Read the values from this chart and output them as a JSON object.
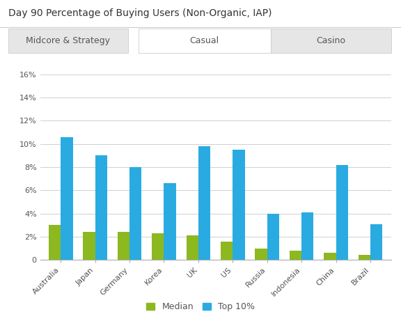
{
  "title": "Day 90 Percentage of Buying Users (Non-Organic, IAP)",
  "tabs": [
    "Midcore & Strategy",
    "Casual",
    "Casino"
  ],
  "active_tab": "Casual",
  "categories": [
    "Australia",
    "Japan",
    "Germany",
    "Korea",
    "UK",
    "US",
    "Russia",
    "Indonesia",
    "China",
    "Brazil"
  ],
  "median": [
    3.0,
    2.4,
    2.4,
    2.3,
    2.1,
    1.6,
    1.0,
    0.8,
    0.6,
    0.45
  ],
  "top10": [
    10.6,
    9.0,
    8.0,
    6.6,
    9.8,
    9.5,
    4.0,
    4.1,
    8.2,
    3.1
  ],
  "median_color": "#8cb820",
  "top10_color": "#29abe2",
  "ylim": [
    0,
    17
  ],
  "yticks": [
    0,
    2,
    4,
    6,
    8,
    10,
    12,
    14,
    16
  ],
  "ytick_labels": [
    "0",
    "2%",
    "4%",
    "6%",
    "8%",
    "10%",
    "12%",
    "14%",
    "16%"
  ],
  "bar_width": 0.35,
  "background_color": "#ffffff",
  "grid_color": "#d0d0d0",
  "title_fontsize": 10,
  "tick_fontsize": 8,
  "legend_fontsize": 9,
  "tab_bg_active": "#ffffff",
  "tab_bg_inactive": "#e6e6e6",
  "tab_text_color": "#555555",
  "tab_border_color": "#cccccc"
}
